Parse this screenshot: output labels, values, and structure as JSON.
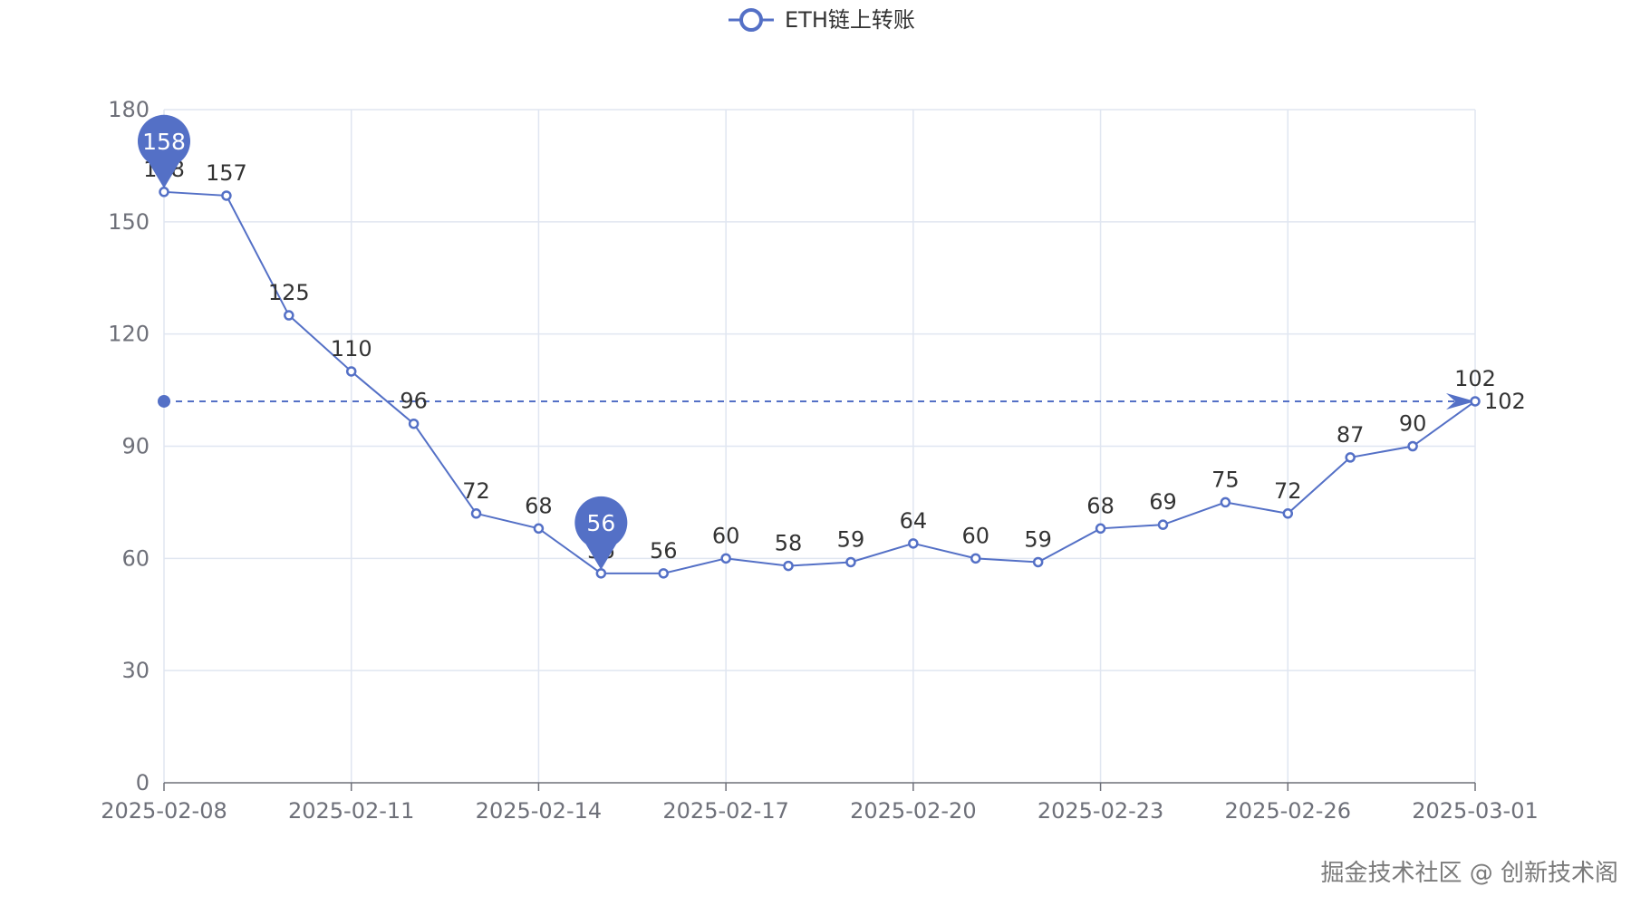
{
  "chart_data": {
    "type": "line",
    "title": "",
    "xlabel": "",
    "ylabel": "",
    "ylim": [
      0,
      180
    ],
    "yticks": [
      0,
      30,
      60,
      90,
      120,
      150,
      180
    ],
    "x": [
      "2025-02-08",
      "2025-02-09",
      "2025-02-10",
      "2025-02-11",
      "2025-02-12",
      "2025-02-13",
      "2025-02-14",
      "2025-02-15",
      "2025-02-16",
      "2025-02-17",
      "2025-02-18",
      "2025-02-19",
      "2025-02-20",
      "2025-02-21",
      "2025-02-22",
      "2025-02-23",
      "2025-02-24",
      "2025-02-25",
      "2025-02-26",
      "2025-02-27",
      "2025-02-28",
      "2025-03-01"
    ],
    "xtick_labels": [
      "2025-02-08",
      "2025-02-11",
      "2025-02-14",
      "2025-02-17",
      "2025-02-20",
      "2025-02-23",
      "2025-02-26",
      "2025-03-01"
    ],
    "series": [
      {
        "name": "ETH链上转账",
        "values": [
          158,
          157,
          125,
          110,
          96,
          72,
          68,
          56,
          56,
          60,
          58,
          59,
          64,
          60,
          59,
          68,
          69,
          75,
          72,
          87,
          90,
          102
        ]
      }
    ],
    "mark_points": [
      {
        "label": "158",
        "x": "2025-02-08",
        "y": 158
      },
      {
        "label": "56",
        "x": "2025-02-15",
        "y": 56
      }
    ],
    "mark_line": {
      "y": 102,
      "label": "102"
    },
    "legend": "top-center",
    "grid": true,
    "colors": {
      "series": "#5470c6",
      "grid": "#e0e6f1",
      "axis": "#6e7079",
      "label": "#333333"
    }
  },
  "watermark": "掘金技术社区 @ 创新技术阁"
}
